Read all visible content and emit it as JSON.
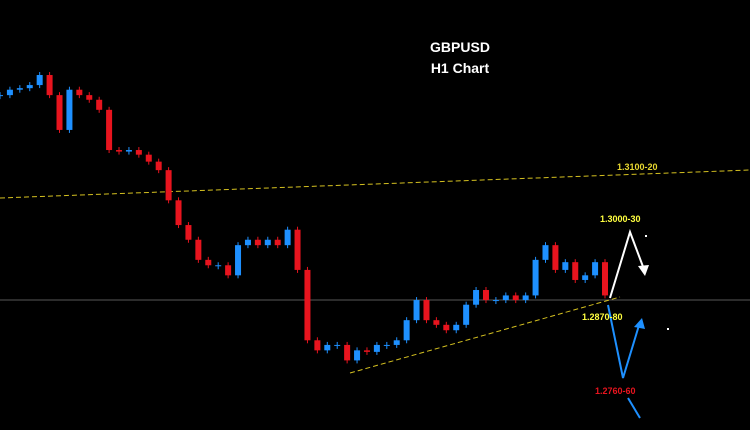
{
  "chart_data": {
    "type": "candlestick",
    "title": "GBPUSD",
    "subtitle": "H1 Chart",
    "annotations": [
      "1.3100-20",
      "1.3000-30",
      "1.2870-80",
      "1.2760-60"
    ],
    "values": [
      1.3135,
      1.3142,
      1.3144,
      1.3148,
      1.3161,
      1.3135,
      1.309,
      1.3142,
      1.3135,
      1.3129,
      1.3116,
      1.3064,
      1.3062,
      1.3064,
      1.3058,
      1.3049,
      1.3038,
      1.2999,
      1.2967,
      1.2948,
      1.2922,
      1.2915,
      1.2915,
      1.2902,
      1.2941,
      1.2948,
      1.2941,
      1.2948,
      1.2941,
      1.2961,
      1.2909,
      1.2818,
      1.2805,
      1.2812,
      1.2812,
      1.2792,
      1.2805,
      1.2803,
      1.2812,
      1.2812,
      1.2818,
      1.2844,
      1.287,
      1.2844,
      1.2838,
      1.2831,
      1.2838,
      1.2864,
      1.2883,
      1.287,
      1.287,
      1.2876,
      1.287,
      1.2876,
      1.2922,
      1.2941,
      1.2909,
      1.2919,
      1.2896,
      1.2902,
      1.2919,
      1.2876
    ],
    "up_color": "#1e90ff",
    "down_color": "#e8141e",
    "ylim": [
      1.2702,
      1.3258
    ]
  }
}
